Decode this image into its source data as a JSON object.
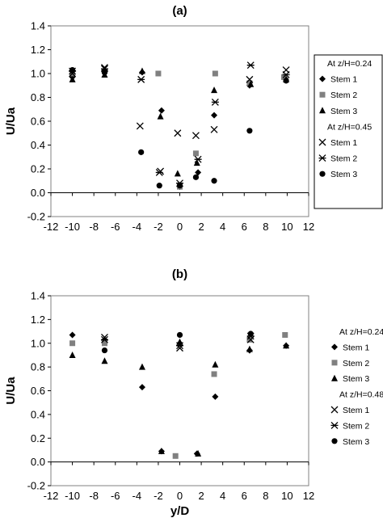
{
  "chart_data": [
    {
      "type": "scatter",
      "title": "(a)",
      "xlabel": "",
      "ylabel": "U/Ua",
      "xlim": [
        -12,
        12
      ],
      "ylim": [
        -0.2,
        1.4
      ],
      "xticks": [
        "-12",
        "-10",
        "-8",
        "-6",
        "-4",
        "-2",
        "0",
        "2",
        "4",
        "6",
        "8",
        "10",
        "12"
      ],
      "yticks": [
        "-0.2",
        "0.0",
        "0.2",
        "0.4",
        "0.6",
        "0.8",
        "1.0",
        "1.2",
        "1.4"
      ],
      "grid": false,
      "legend_position": "right",
      "legend_groups": [
        {
          "header": "At z/H=0.24",
          "start": 0
        },
        {
          "header": "At z/H=0.45",
          "start": 3
        }
      ],
      "series": [
        {
          "name": "Stem 1",
          "marker": "diamond",
          "color": "#000000",
          "points": [
            [
              -10,
              0.97
            ],
            [
              -7,
              1.02
            ],
            [
              -3.5,
              1.01
            ],
            [
              -1.7,
              0.69
            ],
            [
              0,
              0.05
            ],
            [
              1.7,
              0.17
            ],
            [
              3.2,
              0.65
            ],
            [
              6.5,
              0.9
            ],
            [
              9.8,
              0.96
            ]
          ]
        },
        {
          "name": "Stem 2",
          "marker": "square",
          "color": "#808080",
          "points": [
            [
              -10,
              1.0
            ],
            [
              -7,
              1.02
            ],
            [
              -2,
              1.0
            ],
            [
              0,
              0.05
            ],
            [
              1.5,
              0.33
            ],
            [
              3.3,
              1.0
            ],
            [
              6.5,
              0.92
            ],
            [
              9.7,
              0.97
            ]
          ]
        },
        {
          "name": "Stem 3",
          "marker": "triangle",
          "color": "#000000",
          "points": [
            [
              -10,
              0.95
            ],
            [
              -7,
              0.99
            ],
            [
              -3.5,
              1.02
            ],
            [
              -1.8,
              0.64
            ],
            [
              -0.2,
              0.16
            ],
            [
              1.6,
              0.25
            ],
            [
              3.2,
              0.86
            ],
            [
              6.6,
              0.91
            ],
            [
              9.9,
              0.95
            ]
          ]
        },
        {
          "name": "Stem 1",
          "marker": "x",
          "color": "#000000",
          "points": [
            [
              -10,
              1.0
            ],
            [
              -7,
              1.05
            ],
            [
              -3.7,
              0.56
            ],
            [
              -1.8,
              0.18
            ],
            [
              -0.2,
              0.5
            ],
            [
              1.5,
              0.48
            ],
            [
              3.2,
              0.53
            ],
            [
              6.5,
              0.95
            ],
            [
              9.9,
              1.03
            ]
          ]
        },
        {
          "name": "Stem 2",
          "marker": "star",
          "color": "#000000",
          "points": [
            [
              -10,
              1.02
            ],
            [
              -7,
              1.04
            ],
            [
              -3.6,
              0.95
            ],
            [
              -1.9,
              0.17
            ],
            [
              0,
              0.08
            ],
            [
              1.7,
              0.28
            ],
            [
              3.3,
              0.76
            ],
            [
              6.6,
              1.07
            ],
            [
              9.9,
              0.99
            ]
          ]
        },
        {
          "name": "Stem 3",
          "marker": "circle",
          "color": "#000000",
          "points": [
            [
              -10,
              1.03
            ],
            [
              -7,
              1.01
            ],
            [
              -3.6,
              0.34
            ],
            [
              -1.9,
              0.06
            ],
            [
              0,
              0.06
            ],
            [
              1.5,
              0.13
            ],
            [
              3.2,
              0.1
            ],
            [
              6.5,
              0.52
            ],
            [
              9.9,
              0.94
            ]
          ]
        }
      ]
    },
    {
      "type": "scatter",
      "title": "(b)",
      "xlabel": "y/D",
      "ylabel": "U/Ua",
      "xlim": [
        -12,
        12
      ],
      "ylim": [
        -0.2,
        1.4
      ],
      "xticks": [
        "-12",
        "-10",
        "-8",
        "-6",
        "-4",
        "-2",
        "0",
        "2",
        "4",
        "6",
        "8",
        "10",
        "12"
      ],
      "yticks": [
        "-0.2",
        "0.0",
        "0.2",
        "0.4",
        "0.6",
        "0.8",
        "1.0",
        "1.2",
        "1.4"
      ],
      "grid": false,
      "legend_position": "right",
      "legend_groups": [
        {
          "header": "At z/H=0.24",
          "start": 0
        },
        {
          "header": "At z/H=0.48",
          "start": 3
        }
      ],
      "series": [
        {
          "name": "Stem 1",
          "marker": "diamond",
          "color": "#000000",
          "points": [
            [
              -10,
              1.07
            ],
            [
              -7,
              1.03
            ],
            [
              -3.5,
              0.63
            ],
            [
              -1.7,
              0.09
            ],
            [
              0,
              1.0
            ],
            [
              1.6,
              0.07
            ],
            [
              3.3,
              0.55
            ],
            [
              6.5,
              0.94
            ],
            [
              9.9,
              0.98
            ]
          ]
        },
        {
          "name": "Stem 2",
          "marker": "square",
          "color": "#808080",
          "points": [
            [
              -10,
              1.0
            ],
            [
              -7,
              1.0
            ],
            [
              -0.4,
              0.05
            ],
            [
              3.2,
              0.74
            ],
            [
              6.5,
              1.03
            ],
            [
              9.8,
              1.07
            ]
          ]
        },
        {
          "name": "Stem 3",
          "marker": "triangle",
          "color": "#000000",
          "points": [
            [
              -10,
              0.9
            ],
            [
              -7,
              0.85
            ],
            [
              -3.5,
              0.8
            ],
            [
              -1.7,
              0.09
            ],
            [
              0,
              1.01
            ],
            [
              1.7,
              0.07
            ],
            [
              3.3,
              0.82
            ],
            [
              6.5,
              0.95
            ],
            [
              9.9,
              0.98
            ]
          ]
        },
        {
          "name": "Stem 1",
          "marker": "x",
          "color": "#000000",
          "points": [
            [
              -7,
              1.05
            ],
            [
              0,
              0.96
            ],
            [
              6.6,
              1.03
            ]
          ]
        },
        {
          "name": "Stem 2",
          "marker": "star",
          "color": "#000000",
          "points": [
            [
              -7,
              1.03
            ],
            [
              0,
              0.98
            ],
            [
              6.6,
              1.06
            ]
          ]
        },
        {
          "name": "Stem 3",
          "marker": "circle",
          "color": "#000000",
          "points": [
            [
              -7,
              0.94
            ],
            [
              0,
              1.07
            ],
            [
              6.6,
              1.08
            ]
          ]
        }
      ]
    }
  ]
}
